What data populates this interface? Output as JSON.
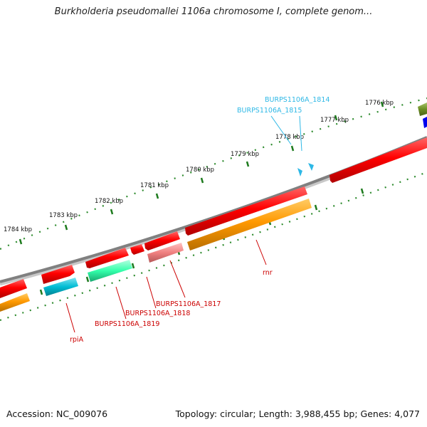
{
  "title": "Burkholderia pseudomallei 1106a chromosome I, complete genom...",
  "footer": {
    "accession": "Accession: NC_009076",
    "topology": "Topology: circular; Length: 3,988,455 bp; Genes: 4,077"
  },
  "ruler_labels": [
    "1776 kbp",
    "1777 kbp",
    "1778 kbp",
    "1779 kbp",
    "1780 kbp",
    "1781 kbp",
    "1782 kbp",
    "1783 kbp",
    "1784 kbp"
  ],
  "gene_labels": {
    "burps1106a_1814": "BURPS1106A_1814",
    "burps1106a_1815": "BURPS1106A_1815",
    "burps1106a_1817": "BURPS1106A_1817",
    "burps1106a_1818": "BURPS1106A_1818",
    "burps1106a_1819": "BURPS1106A_1819",
    "rpia": "rpiA",
    "rnr": "rnr"
  },
  "colors": {
    "backbone": "#808080",
    "forward_gene": "#ff0000",
    "cds_orange": "#ff9900",
    "cds_cyan": "#00bcd4",
    "cds_spring_green": "#33ffaa",
    "cds_pink": "#f08080",
    "gene_label_red": "#cc0000",
    "gene_label_blue": "#2eb8e6",
    "tick_green": "#228b22",
    "olive_feature": "#6b8e23",
    "blue_feature": "#0000ee"
  }
}
